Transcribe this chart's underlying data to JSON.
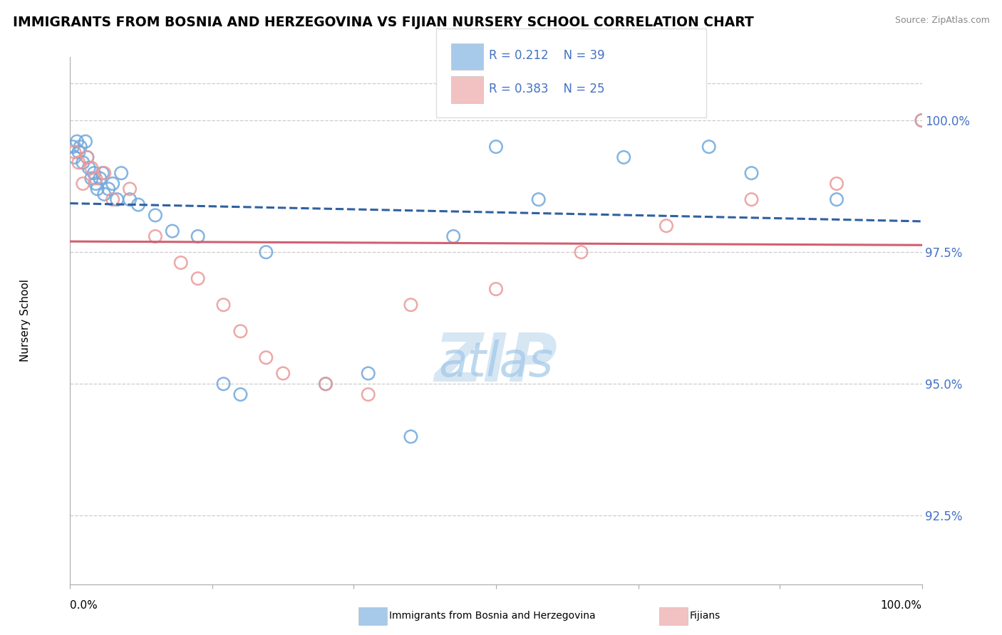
{
  "title": "IMMIGRANTS FROM BOSNIA AND HERZEGOVINA VS FIJIAN NURSERY SCHOOL CORRELATION CHART",
  "source": "Source: ZipAtlas.com",
  "ylabel": "Nursery School",
  "legend_blue_label": "Immigrants from Bosnia and Herzegovina",
  "legend_pink_label": "Fijians",
  "R_blue": 0.212,
  "N_blue": 39,
  "R_pink": 0.383,
  "N_pink": 25,
  "blue_color": "#6fa8dc",
  "pink_color": "#ea9999",
  "blue_line_color": "#3060a0",
  "pink_line_color": "#d06070",
  "ytick_values": [
    92.5,
    95.0,
    97.5,
    100.0
  ],
  "blue_scatter_x": [
    0.3,
    0.5,
    0.8,
    1.0,
    1.2,
    1.5,
    1.8,
    2.0,
    2.2,
    2.5,
    2.8,
    3.0,
    3.2,
    3.5,
    3.8,
    4.0,
    4.5,
    5.0,
    5.5,
    6.0,
    7.0,
    8.0,
    10.0,
    12.0,
    15.0,
    18.0,
    20.0,
    23.0,
    30.0,
    35.0,
    40.0,
    45.0,
    50.0,
    55.0,
    65.0,
    75.0,
    80.0,
    90.0,
    100.0
  ],
  "blue_scatter_y": [
    99.5,
    99.3,
    99.6,
    99.4,
    99.5,
    99.2,
    99.6,
    99.3,
    99.1,
    98.9,
    99.0,
    98.8,
    98.7,
    98.9,
    99.0,
    98.6,
    98.7,
    98.8,
    98.5,
    99.0,
    98.5,
    98.4,
    98.2,
    97.9,
    97.8,
    95.0,
    94.8,
    97.5,
    95.0,
    95.2,
    94.0,
    97.8,
    99.5,
    98.5,
    99.3,
    99.5,
    99.0,
    98.5,
    100.0
  ],
  "pink_scatter_x": [
    0.5,
    1.0,
    1.5,
    2.0,
    2.5,
    3.0,
    4.0,
    5.0,
    7.0,
    10.0,
    13.0,
    15.0,
    18.0,
    20.0,
    23.0,
    25.0,
    30.0,
    35.0,
    40.0,
    50.0,
    60.0,
    70.0,
    80.0,
    90.0,
    100.0
  ],
  "pink_scatter_y": [
    99.4,
    99.2,
    98.8,
    99.3,
    99.1,
    98.9,
    99.0,
    98.5,
    98.7,
    97.8,
    97.3,
    97.0,
    96.5,
    96.0,
    95.5,
    95.2,
    95.0,
    94.8,
    96.5,
    96.8,
    97.5,
    98.0,
    98.5,
    98.8,
    100.0
  ],
  "xlim": [
    0,
    100
  ],
  "ylim": [
    91.2,
    101.2
  ],
  "figsize": [
    14.06,
    8.92
  ],
  "dpi": 100
}
